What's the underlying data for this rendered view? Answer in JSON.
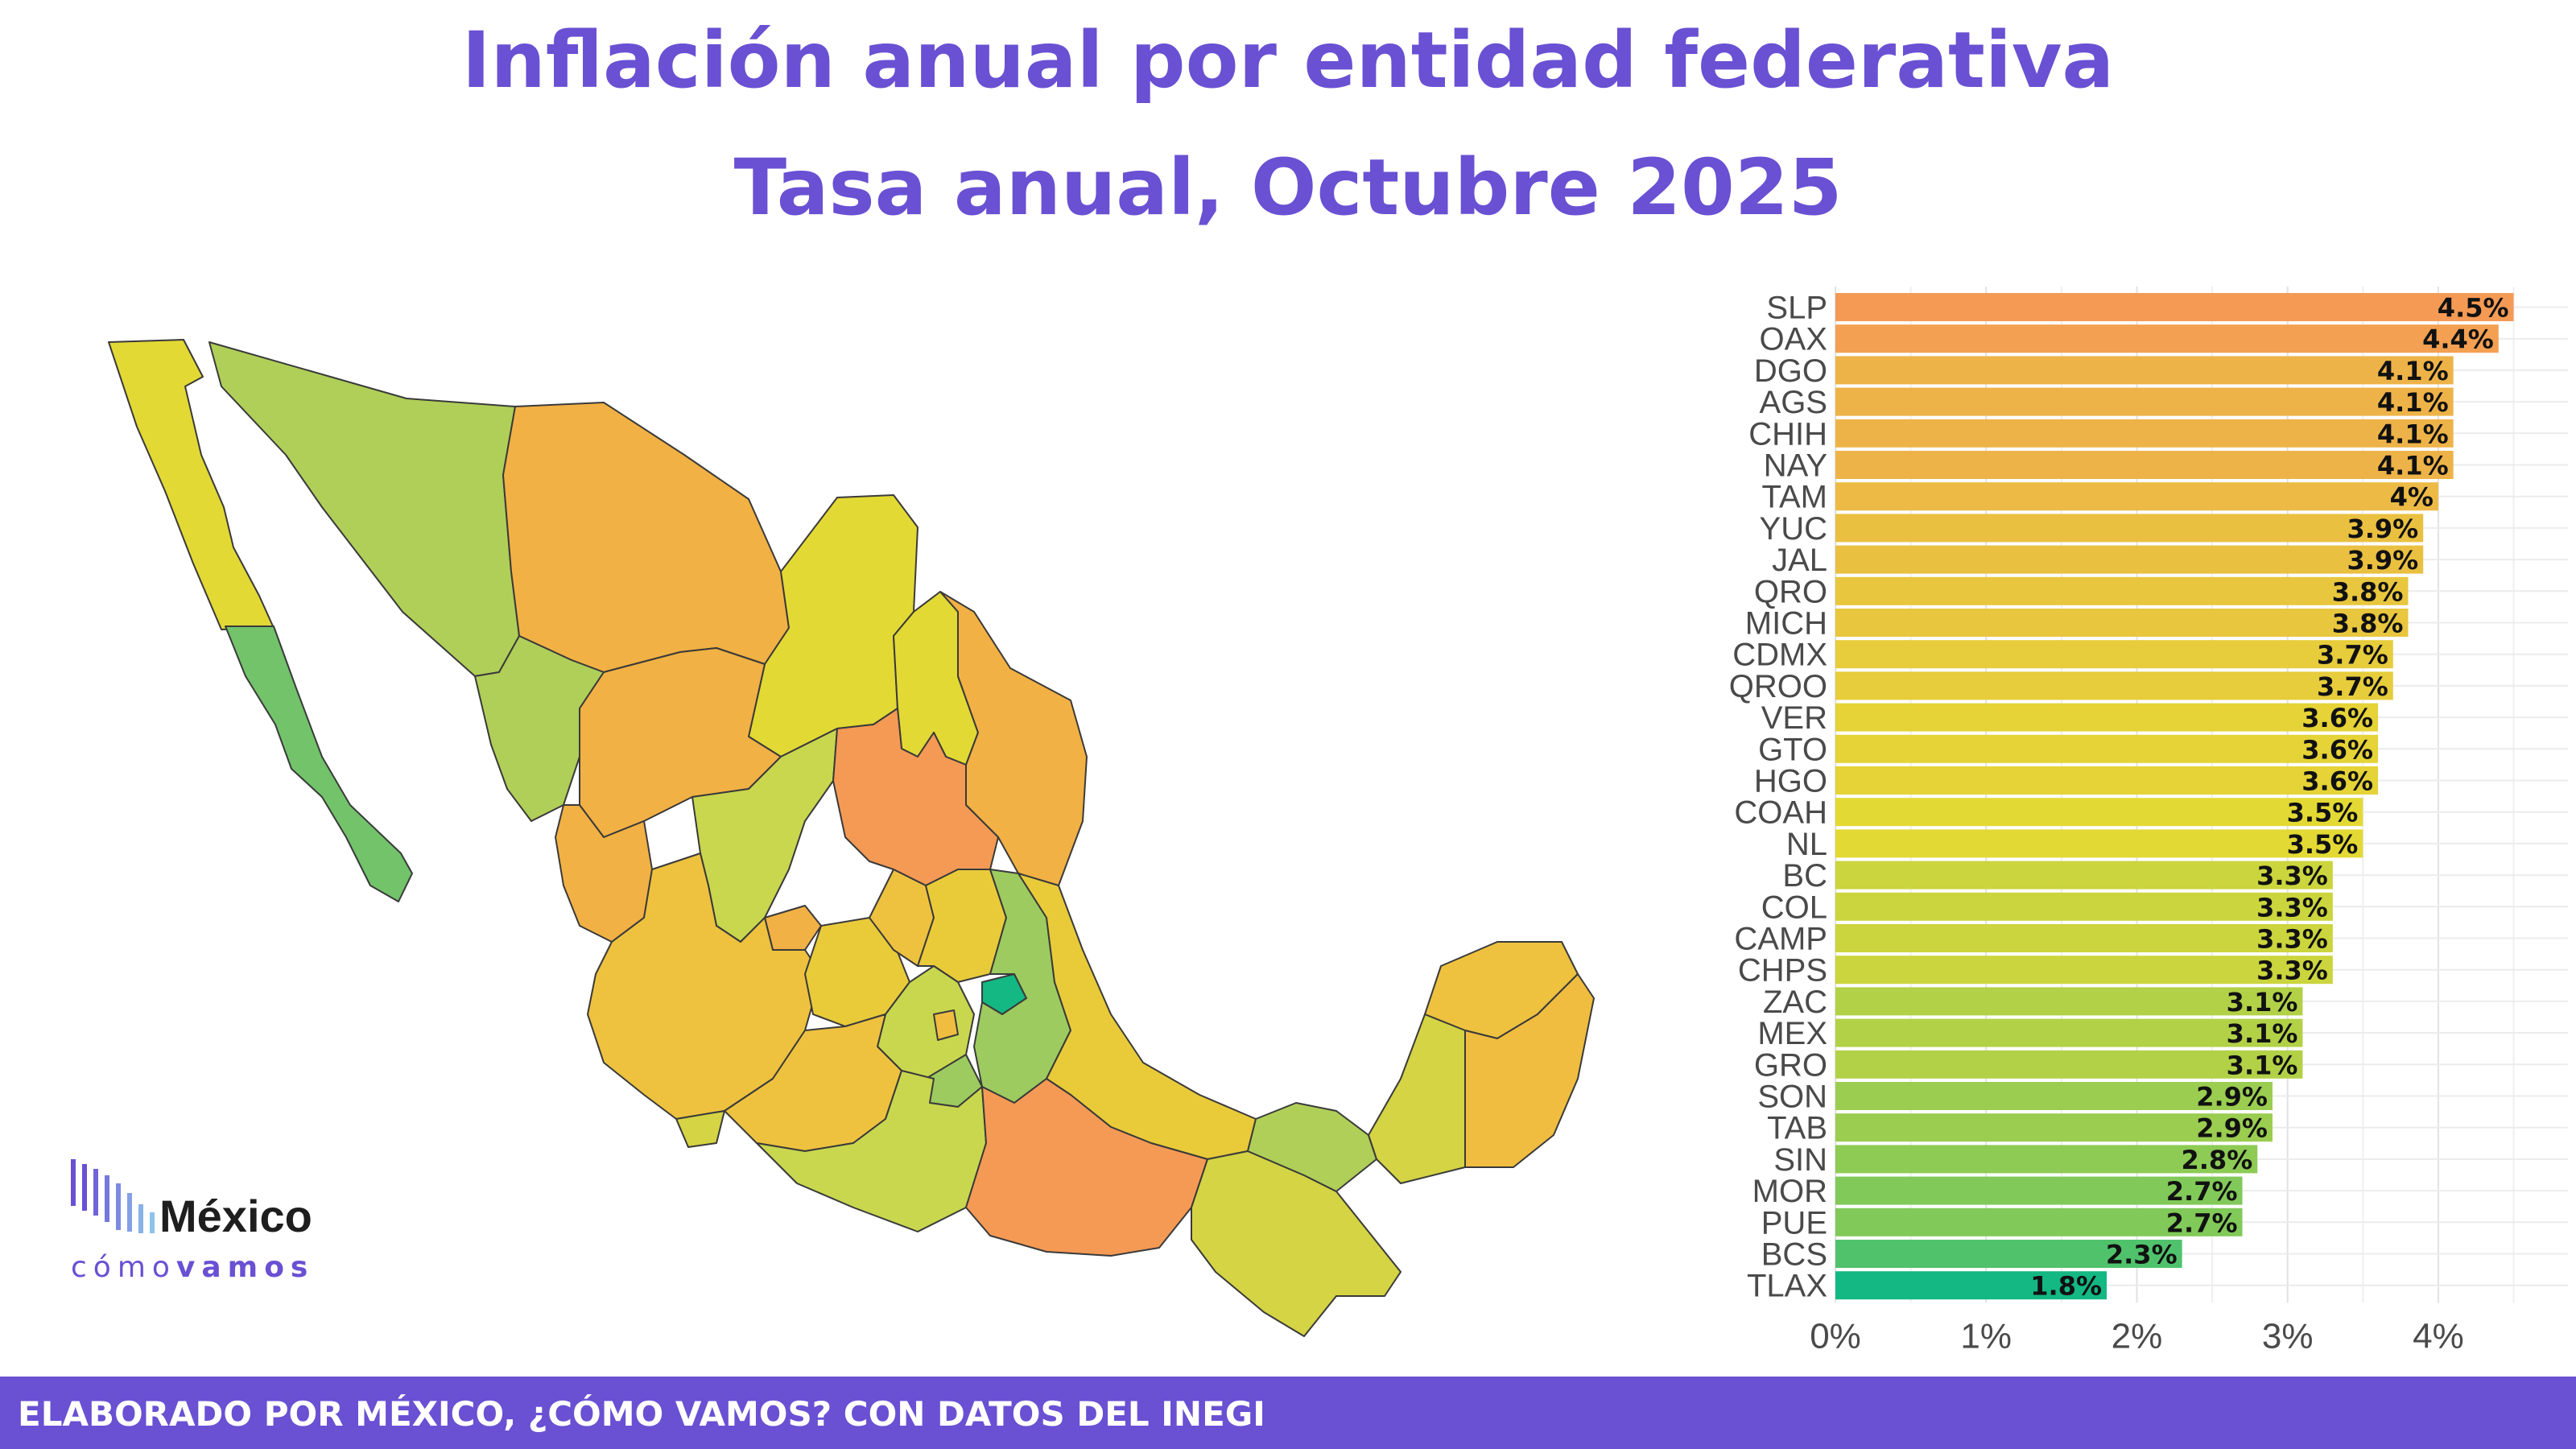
{
  "header": {
    "title": "Inflación anual por entidad federativa",
    "subtitle": "Tasa anual, Octubre 2025"
  },
  "footer": {
    "text": "ELABORADO POR MÉXICO, ¿CÓMO VAMOS? CON DATOS DEL INEGI"
  },
  "logo": {
    "word1": "México",
    "word2a": "cómo",
    "word2b": "vamos"
  },
  "colors": {
    "accent": "#6a50d3",
    "scale_high": "#f59a55",
    "scale_mid": "#e3d934",
    "scale_low": "#13b883"
  },
  "chart_data": {
    "type": "bar",
    "orientation": "horizontal",
    "categories": [
      "SLP",
      "OAX",
      "DGO",
      "AGS",
      "CHIH",
      "NAY",
      "TAM",
      "YUC",
      "JAL",
      "QRO",
      "MICH",
      "CDMX",
      "QROO",
      "VER",
      "GTO",
      "HGO",
      "COAH",
      "NL",
      "BC",
      "COL",
      "CAMP",
      "CHPS",
      "ZAC",
      "MEX",
      "GRO",
      "SON",
      "TAB",
      "SIN",
      "MOR",
      "PUE",
      "BCS",
      "TLAX"
    ],
    "values": [
      4.5,
      4.4,
      4.1,
      4.1,
      4.1,
      4.1,
      4.0,
      3.9,
      3.9,
      3.8,
      3.8,
      3.7,
      3.7,
      3.6,
      3.6,
      3.6,
      3.5,
      3.5,
      3.3,
      3.3,
      3.3,
      3.3,
      3.1,
      3.1,
      3.1,
      2.9,
      2.9,
      2.8,
      2.7,
      2.7,
      2.3,
      1.8
    ],
    "value_labels": [
      "4.5%",
      "4.4%",
      "4.1%",
      "4.1%",
      "4.1%",
      "4.1%",
      "4%",
      "3.9%",
      "3.9%",
      "3.8%",
      "3.8%",
      "3.7%",
      "3.7%",
      "3.6%",
      "3.6%",
      "3.6%",
      "3.5%",
      "3.5%",
      "3.3%",
      "3.3%",
      "3.3%",
      "3.3%",
      "3.1%",
      "3.1%",
      "3.1%",
      "2.9%",
      "2.9%",
      "2.8%",
      "2.7%",
      "2.7%",
      "2.3%",
      "1.8%"
    ],
    "x_ticks": [
      0,
      1,
      2,
      3,
      4
    ],
    "x_tick_labels": [
      "0%",
      "1%",
      "2%",
      "3%",
      "4%"
    ],
    "xlim": [
      0,
      4.7
    ],
    "grid": true
  }
}
